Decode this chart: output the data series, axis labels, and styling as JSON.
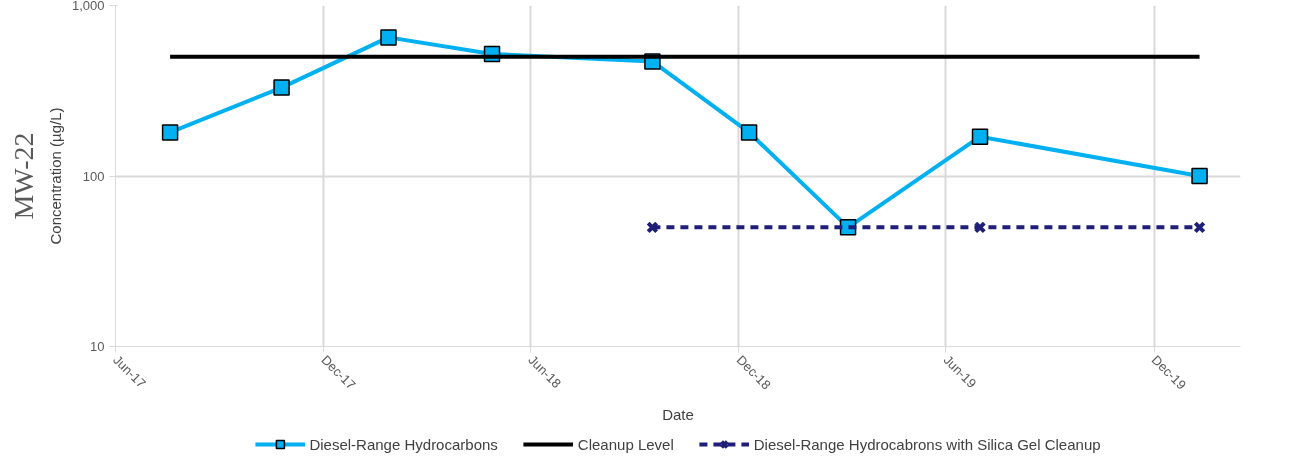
{
  "chart_data": {
    "type": "line",
    "title": "MW-22",
    "xlabel": "Date",
    "ylabel": "Concentration (µg/L)",
    "log": "y",
    "grid": true,
    "legend": "bottom",
    "xlim": [
      "2017-06-01",
      "2020-02-15"
    ],
    "xticks": [
      {
        "value": "2017-06-01",
        "label": "Jun-17"
      },
      {
        "value": "2017-12-01",
        "label": "Dec-17"
      },
      {
        "value": "2018-06-01",
        "label": "Jun-18"
      },
      {
        "value": "2018-12-01",
        "label": "Dec-18"
      },
      {
        "value": "2019-06-01",
        "label": "Jun-19"
      },
      {
        "value": "2019-12-01",
        "label": "Dec-19"
      }
    ],
    "ylim": [
      10,
      1000
    ],
    "yticks": [
      10,
      100,
      {
        "value": 1000,
        "label": "1,000"
      }
    ],
    "series": [
      {
        "name": "Diesel-Range Hydrocarbons",
        "color": "#00b0f0",
        "marker": "square",
        "line_style": "solid",
        "x": [
          "2017-07-19",
          "2017-10-25",
          "2018-01-27",
          "2018-04-28",
          "2018-09-16",
          "2018-12-10",
          "2019-03-07",
          "2019-07-01",
          "2020-01-10"
        ],
        "values": [
          180,
          330,
          650,
          520,
          470,
          180,
          50,
          170,
          100
        ]
      },
      {
        "name": "Cleanup Level",
        "color": "#000000",
        "marker": "none",
        "line_style": "solid",
        "x": [
          "2017-07-19",
          "2020-01-10"
        ],
        "values": [
          500,
          500
        ]
      },
      {
        "name": "Diesel-Range Hydrocabrons with Silica Gel Cleanup",
        "color": "#1f1f7a",
        "marker": "cross",
        "line_style": "dashed",
        "x": [
          "2018-09-16",
          "2019-07-01",
          "2020-01-10"
        ],
        "values": [
          50,
          50,
          50
        ]
      }
    ]
  }
}
